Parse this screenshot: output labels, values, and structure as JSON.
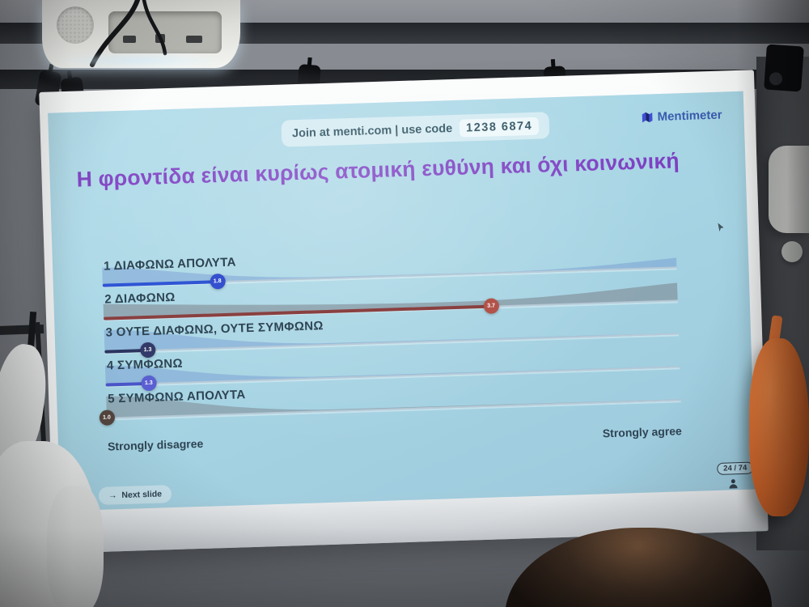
{
  "join_bar": {
    "label": "Join at menti.com | use code",
    "code": "1238 6874"
  },
  "brand": {
    "name": "Mentimeter"
  },
  "title": "Η φροντίδα είναι κυρίως ατομική ευθύνη και όχι κοινωνική",
  "axis": {
    "left": "Strongly disagree",
    "right": "Strongly agree"
  },
  "footer": {
    "next_slide": "Next slide",
    "counter": "24 / 74"
  },
  "icons": {
    "brand_mark": "mentimeter-m-icon",
    "location_pin": "map-pin-icon",
    "next_arrow": "→",
    "participants": "person-silhouette-icon",
    "cursor": "mouse-arrow-icon"
  },
  "colors": {
    "slide_bg": "#a7d5e4",
    "title_text": "#7d3ec2",
    "label_text": "#2e4453",
    "brand_blue": "#3b5cae"
  },
  "chart_data": {
    "type": "bar",
    "variant": "mentimeter-scales-averages",
    "title": "Η φροντίδα είναι κυρίως ατομική ευθύνη και όχι κοινωνική",
    "categories": [
      "1  ΔΙΑΦΩΝΩ ΑΠΟΛΥΤΑ",
      "2  ΔΙΑΦΩΝΩ",
      "3  ΟΥΤΕ ΔΙΑΦΩΝΩ, ΟΥΤΕ ΣΥΜΦΩΝΩ",
      "4  ΣΥΜΦΩΝΩ",
      "5  ΣΥΜΦΩΝΩ ΑΠΟΛΥΤΑ"
    ],
    "values": [
      1.8,
      3.7,
      1.3,
      1.3,
      1.0
    ],
    "xlim": [
      1,
      5
    ],
    "xlabel_left": "Strongly disagree",
    "xlabel_right": "Strongly agree",
    "grid": false,
    "legend": "none",
    "point_colors": [
      "#3450cf",
      "#b25349",
      "#333a69",
      "#5a5fd2",
      "#54443f"
    ],
    "line_colors": [
      "#2f55d4",
      "#8a4040",
      "#2c3560",
      "#4a55c8",
      "#54443f"
    ],
    "wedge_colors": [
      "rgba(105,140,205,0.38)",
      "rgba(118,121,130,0.5)",
      "rgba(105,140,205,0.38)",
      "rgba(105,140,205,0.38)",
      "rgba(118,121,130,0.46)"
    ],
    "distributions": [
      "left-heavy-right-tail",
      "spread-right-tail",
      "left-heavy-tall",
      "left-heavy",
      "left-heavy-tall"
    ]
  }
}
